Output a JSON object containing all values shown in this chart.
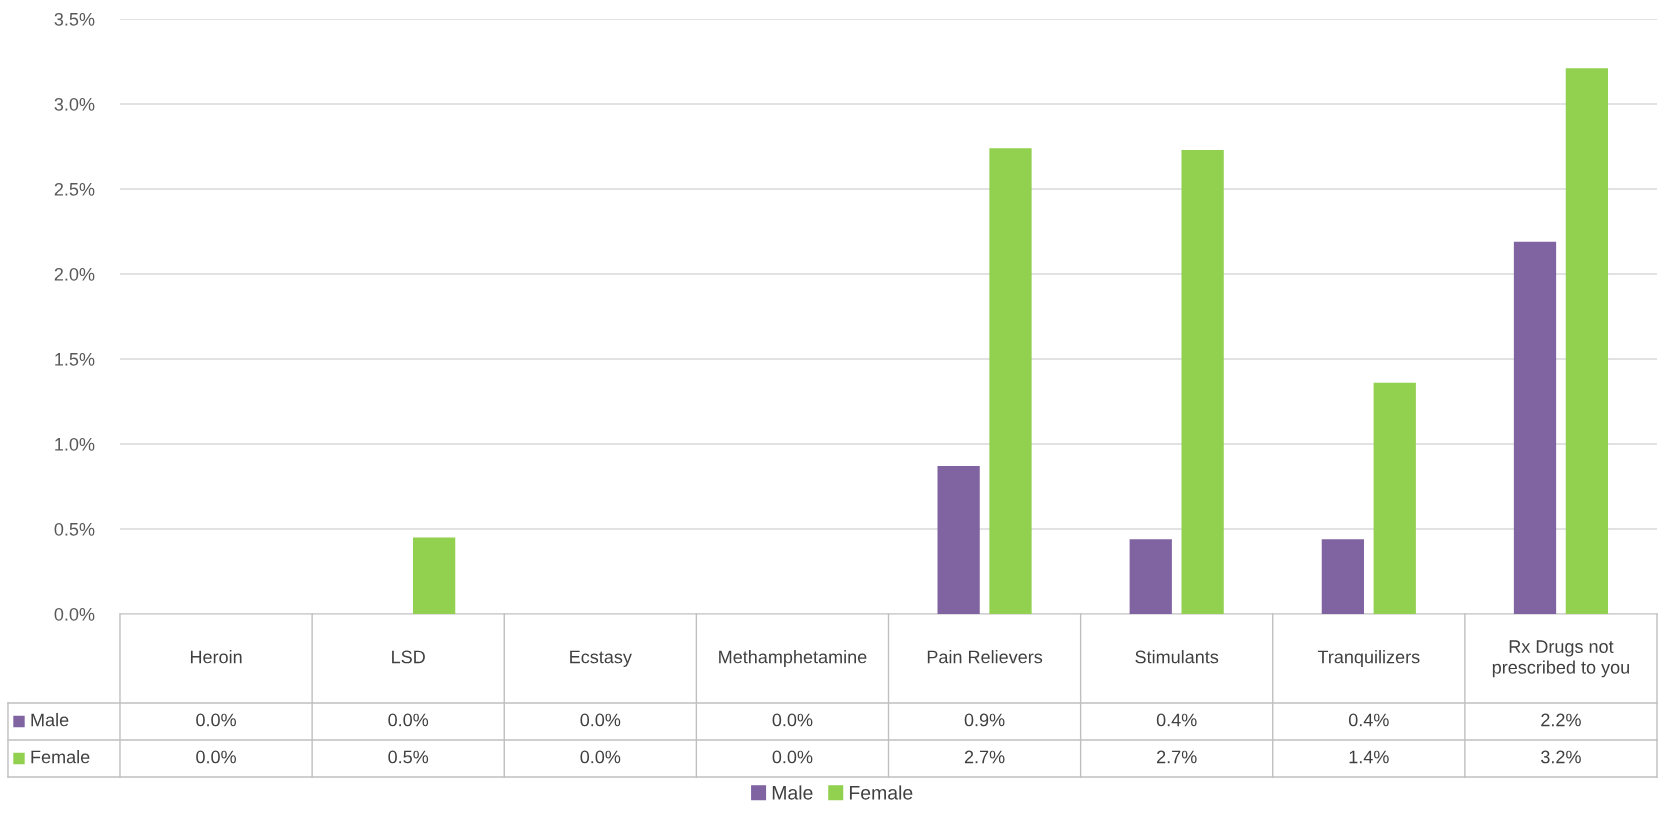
{
  "chart_data": {
    "type": "bar",
    "categories": [
      "Heroin",
      "LSD",
      "Ecstasy",
      "Methamphetamine",
      "Pain Relievers",
      "Stimulants",
      "Tranquilizers",
      "Rx Drugs not prescribed to you"
    ],
    "series": [
      {
        "name": "Male",
        "color": "#8064a2",
        "values": [
          0,
          0,
          0,
          0,
          0.87,
          0.44,
          0.44,
          2.19
        ],
        "value_labels": [
          "0.0%",
          "0.0%",
          "0.0%",
          "0.0%",
          "0.9%",
          "0.4%",
          "0.4%",
          "2.2%"
        ]
      },
      {
        "name": "Female",
        "color": "#92d050",
        "values": [
          0,
          0.45,
          0,
          0,
          2.74,
          2.73,
          1.36,
          3.21
        ],
        "value_labels": [
          "0.0%",
          "0.5%",
          "0.0%",
          "0.0%",
          "2.7%",
          "2.7%",
          "1.4%",
          "3.2%"
        ]
      }
    ],
    "ylim": [
      0,
      3.5
    ],
    "yticks": [
      {
        "value": 0,
        "label": "0.0%"
      },
      {
        "value": 0.5,
        "label": "0.5%"
      },
      {
        "value": 1,
        "label": "1.0%"
      },
      {
        "value": 1.5,
        "label": "1.5%"
      },
      {
        "value": 2,
        "label": "2.0%"
      },
      {
        "value": 2.5,
        "label": "2.5%"
      },
      {
        "value": 3,
        "label": "3.0%"
      },
      {
        "value": 3.5,
        "label": "3.5%"
      }
    ],
    "grid": "y",
    "legend": "bottom"
  }
}
